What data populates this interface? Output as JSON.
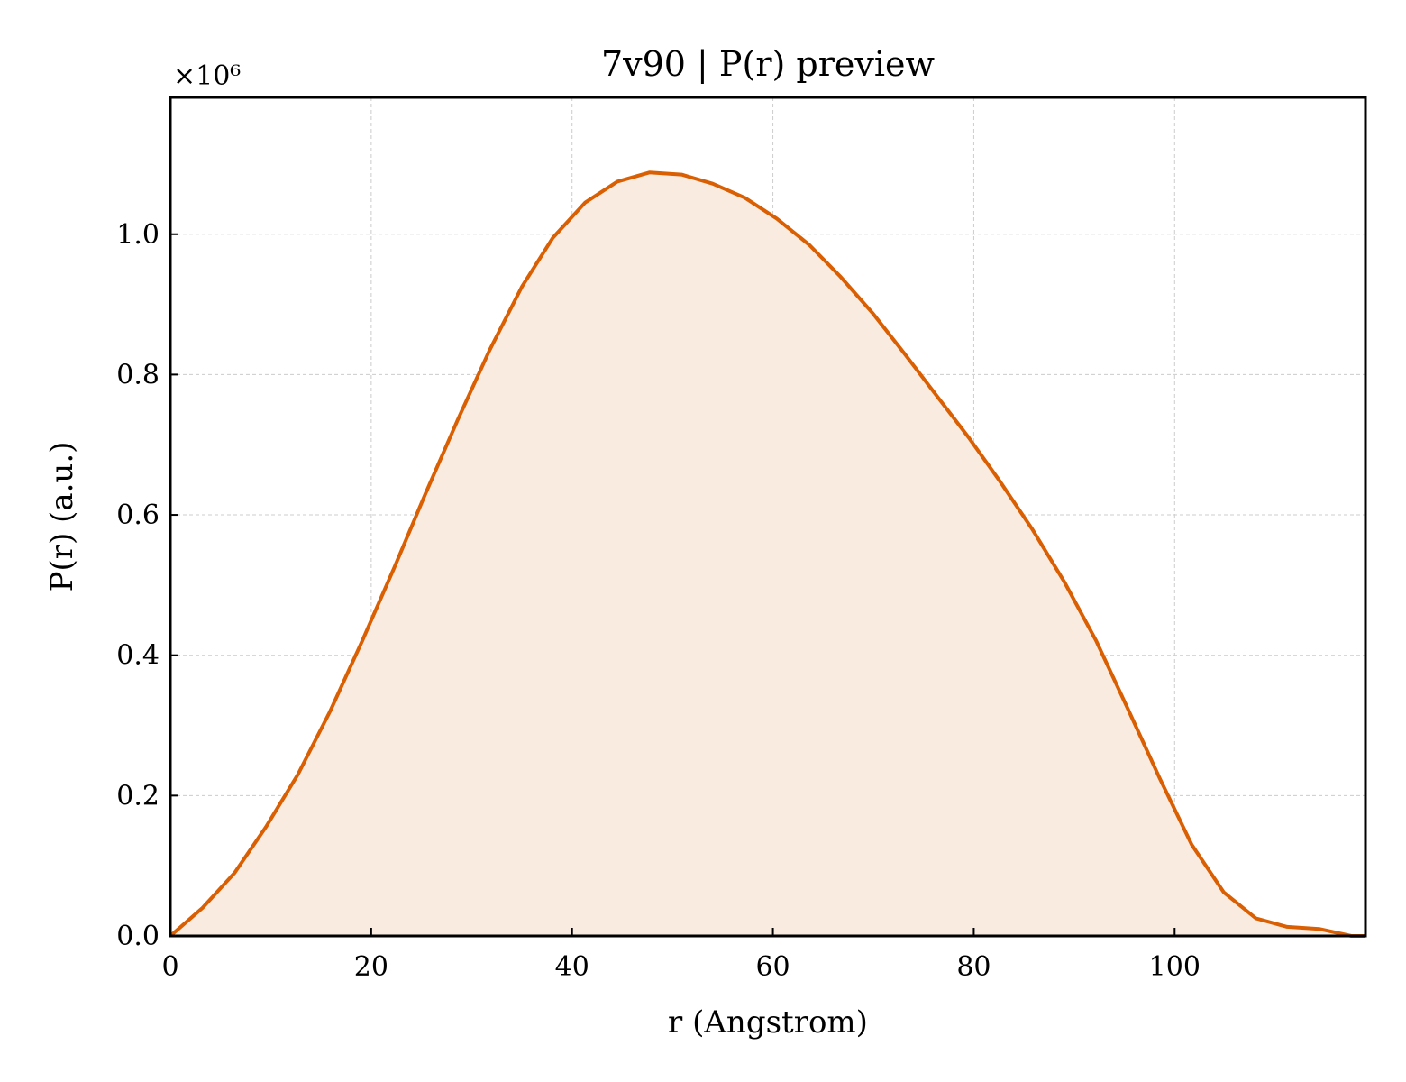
{
  "chart_data": {
    "type": "area",
    "title": "7v90 | P(r) preview",
    "xlabel": "r (Angstrom)",
    "ylabel": "P(r) (a.u.)",
    "y_offset_label": "×10⁶",
    "y_multiplier": 1000000,
    "xlim": [
      0,
      119
    ],
    "ylim": [
      0,
      1.195
    ],
    "xticks": [
      0,
      20,
      40,
      60,
      80,
      100
    ],
    "yticks": [
      0.0,
      0.2,
      0.4,
      0.6,
      0.8,
      1.0
    ],
    "xtick_labels": [
      "0",
      "20",
      "40",
      "60",
      "80",
      "100"
    ],
    "ytick_labels": [
      "0.0",
      "0.2",
      "0.4",
      "0.6",
      "0.8",
      "1.0"
    ],
    "grid": true,
    "series": [
      {
        "line_color": "#d95f02",
        "fill_color": "#f9ebe0",
        "x": [
          0,
          3.2,
          6.4,
          9.5,
          12.7,
          15.9,
          19.1,
          22.3,
          25.4,
          28.6,
          31.8,
          35.0,
          38.1,
          41.3,
          44.5,
          47.7,
          50.9,
          54.0,
          57.2,
          60.4,
          63.6,
          66.7,
          69.9,
          73.1,
          76.3,
          79.5,
          82.6,
          85.8,
          89.0,
          92.2,
          95.3,
          98.5,
          101.7,
          104.9,
          108.1,
          111.2,
          114.4,
          117.6,
          119.0
        ],
        "y": [
          0.0,
          0.04,
          0.09,
          0.155,
          0.23,
          0.32,
          0.42,
          0.525,
          0.63,
          0.735,
          0.835,
          0.925,
          0.995,
          1.045,
          1.075,
          1.088,
          1.085,
          1.072,
          1.052,
          1.022,
          0.985,
          0.94,
          0.888,
          0.83,
          0.77,
          0.71,
          0.648,
          0.58,
          0.505,
          0.42,
          0.325,
          0.225,
          0.13,
          0.062,
          0.025,
          0.013,
          0.01,
          0.0,
          0.0
        ]
      }
    ]
  }
}
